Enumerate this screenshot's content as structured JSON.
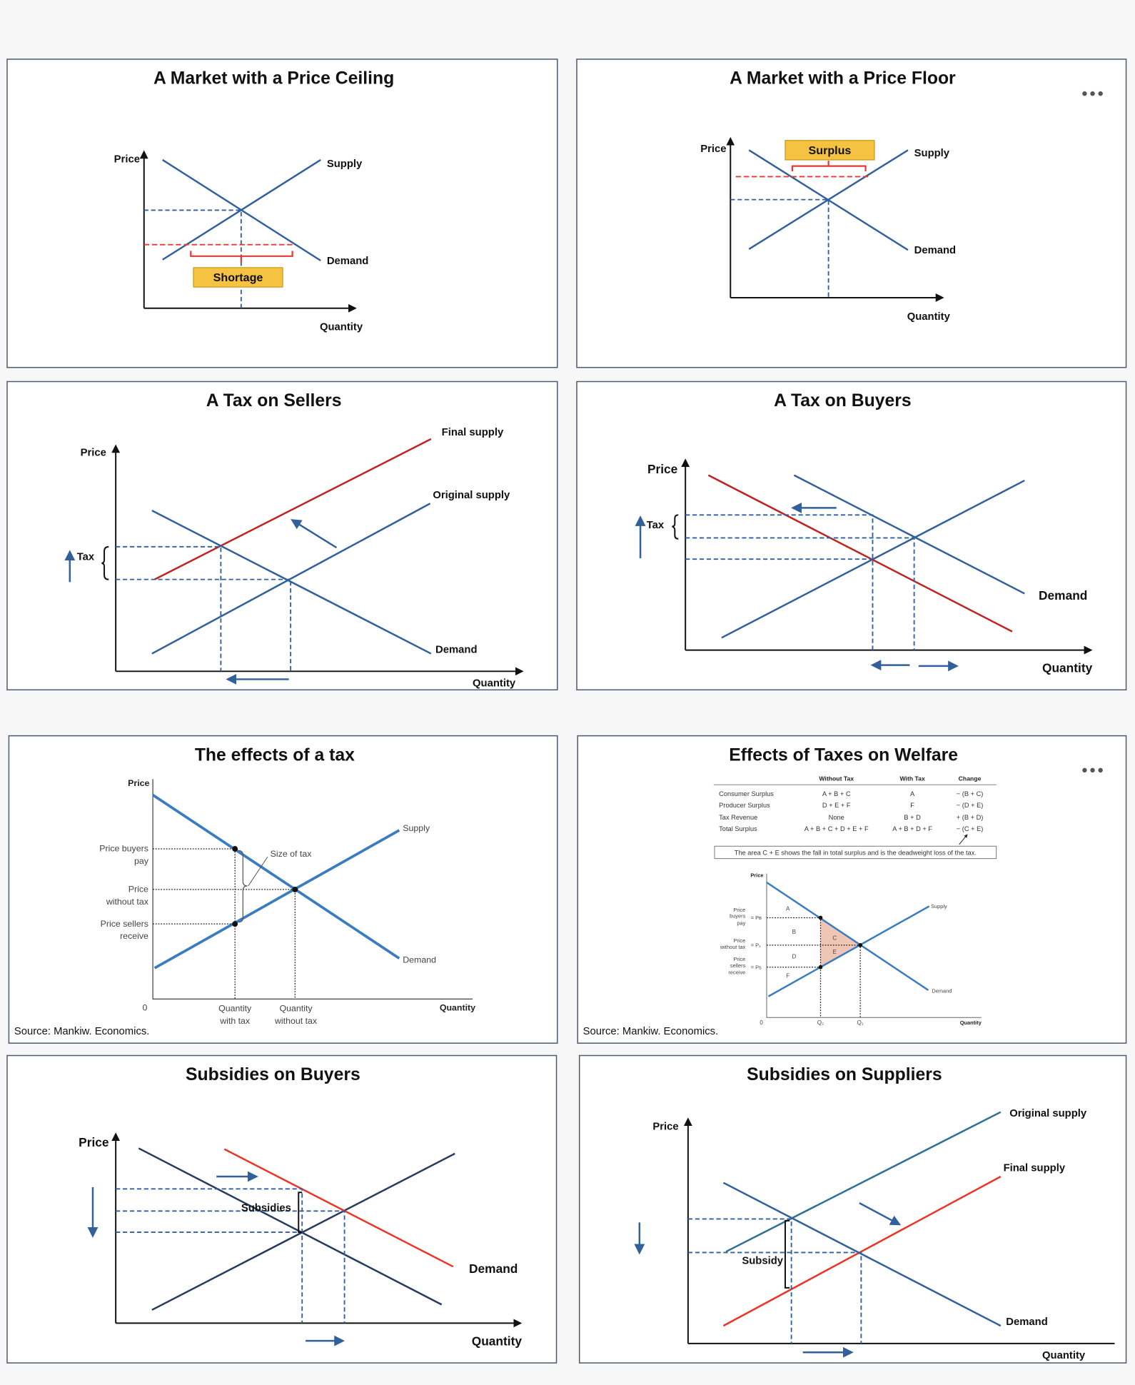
{
  "colors": {
    "line_blue": "#31609b",
    "red": "#c0231f",
    "bright_red": "#ee3326",
    "highlight": "#f5c242",
    "deadweight": "#efc6b6",
    "background": "#f7f7f7"
  },
  "menu_icon": "more-horizontal-icon",
  "ceiling": {
    "title": "A Market with a Price Ceiling",
    "price": "Price",
    "quantity": "Quantity",
    "supply": "Supply",
    "demand": "Demand",
    "box": "Shortage"
  },
  "floor": {
    "title": "A Market with a Price Floor",
    "price": "Price",
    "quantity": "Quantity",
    "supply": "Supply",
    "demand": "Demand",
    "box": "Surplus"
  },
  "tax_sellers": {
    "title": "A Tax on Sellers",
    "price": "Price",
    "quantity": "Quantity",
    "final_supply": "Final supply",
    "original_supply": "Original supply",
    "demand": "Demand",
    "tax": "Tax"
  },
  "tax_buyers": {
    "title": "A Tax on Buyers",
    "price": "Price",
    "quantity": "Quantity",
    "demand": "Demand",
    "tax": "Tax"
  },
  "tax_effects": {
    "title": "The effects of a tax",
    "price": "Price",
    "quantity": "Quantity",
    "zero": "0",
    "supply": "Supply",
    "demand": "Demand",
    "size_of_tax": "Size of tax",
    "buyers_pay": [
      "Price buyers",
      "pay"
    ],
    "without_tax": [
      "Price",
      "without tax"
    ],
    "sellers_receive": [
      "Price sellers",
      "receive"
    ],
    "q_with_tax": [
      "Quantity",
      "with tax"
    ],
    "q_without_tax": [
      "Quantity",
      "without tax"
    ],
    "source": "Source: Mankiw. Economics."
  },
  "welfare": {
    "title": "Effects of Taxes on Welfare",
    "table": {
      "headers": [
        "",
        "Without Tax",
        "With Tax",
        "Change"
      ],
      "rows": [
        [
          "Consumer Surplus",
          "A + B + C",
          "A",
          "− (B + C)"
        ],
        [
          "Producer Surplus",
          "D + E + F",
          "F",
          "− (D + E)"
        ],
        [
          "Tax Revenue",
          "None",
          "B + D",
          "+ (B + D)"
        ],
        [
          "Total Surplus",
          "A + B + C + D + E + F",
          "A + B + D + F",
          "− (C + E)"
        ]
      ],
      "note": "The area C + E shows the fall in total surplus and is the deadweight loss of the tax."
    },
    "chart": {
      "price": "Price",
      "quantity": "Quantity",
      "zero": "0",
      "supply": "Supply",
      "demand": "Demand",
      "buyers_pay": [
        "Price",
        "buyers",
        "pay"
      ],
      "without_tax": [
        "Price",
        "without tax"
      ],
      "sellers_receive": [
        "Price",
        "sellers",
        "receive"
      ],
      "pb": "= Pʙ",
      "p1": "= P₁",
      "ps": "= Ps",
      "q2": "Q₂",
      "q1": "Q₁",
      "areas": [
        "A",
        "B",
        "C",
        "D",
        "E",
        "F"
      ]
    },
    "source": "Source: Mankiw. Economics."
  },
  "sub_buyers": {
    "title": "Subsidies on Buyers",
    "price": "Price",
    "quantity": "Quantity",
    "demand": "Demand",
    "subsidies": "Subsidies"
  },
  "sub_suppliers": {
    "title": "Subsidies on Suppliers",
    "price": "Price",
    "quantity": "Quantity",
    "original_supply": "Original supply",
    "final_supply": "Final supply",
    "demand": "Demand",
    "subsidy": "Subsidy"
  }
}
